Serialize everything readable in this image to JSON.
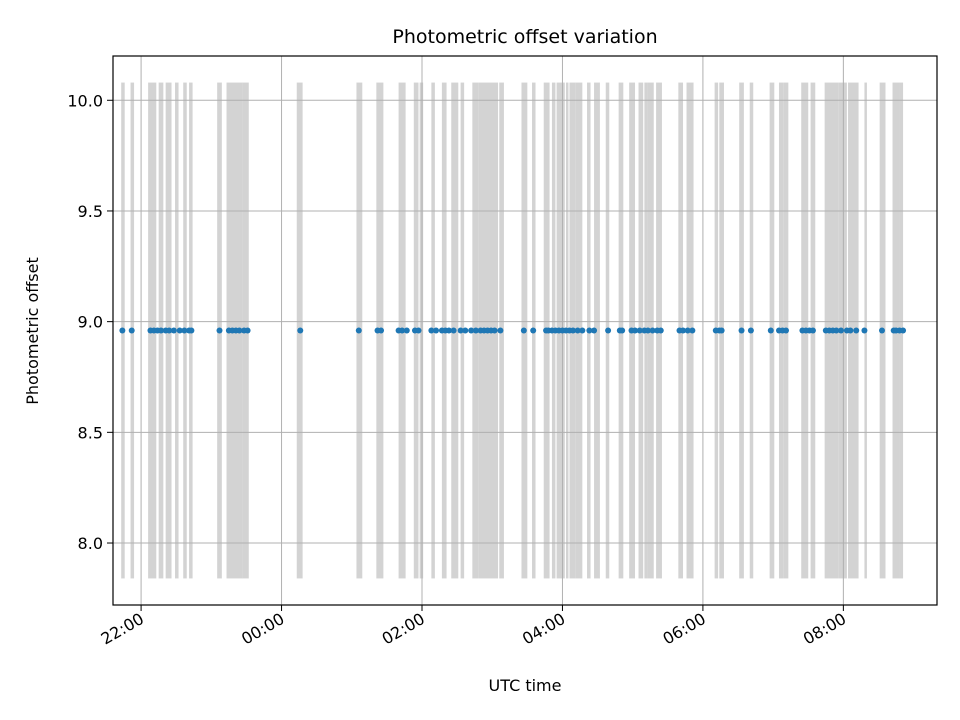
{
  "chart_data": {
    "type": "scatter",
    "title": "Photometric offset variation",
    "xlabel": "UTC time",
    "ylabel": "Photometric offset",
    "x_unit": "UTC",
    "xlim": [
      "21:36",
      "09:20"
    ],
    "ylim": [
      7.72,
      10.2
    ],
    "x_ticks": [
      "22:00",
      "00:00",
      "02:00",
      "04:00",
      "06:00",
      "08:00"
    ],
    "y_ticks": [
      8.0,
      8.5,
      9.0,
      9.5,
      10.0
    ],
    "grid": true,
    "band_y_range": [
      7.84,
      10.08
    ],
    "band_color": "#d3d3d3",
    "point_color": "#1f77b4",
    "bands": [
      [
        "21:43",
        "21:46"
      ],
      [
        "21:51",
        "21:54"
      ],
      [
        "22:06",
        "22:13"
      ],
      [
        "22:15",
        "22:19"
      ],
      [
        "22:21",
        "22:26"
      ],
      [
        "22:29",
        "22:32"
      ],
      [
        "22:36",
        "22:39"
      ],
      [
        "22:41",
        "22:44"
      ],
      [
        "23:05",
        "23:09"
      ],
      [
        "23:13",
        "23:27"
      ],
      [
        "23:27",
        "23:32"
      ],
      [
        "00:13",
        "00:18"
      ],
      [
        "01:04",
        "01:09"
      ],
      [
        "01:21",
        "01:27"
      ],
      [
        "01:40",
        "01:46"
      ],
      [
        "01:53",
        "01:57"
      ],
      [
        "01:58",
        "02:01"
      ],
      [
        "02:08",
        "02:11"
      ],
      [
        "02:17",
        "02:21"
      ],
      [
        "02:25",
        "02:31"
      ],
      [
        "02:33",
        "02:36"
      ],
      [
        "02:43",
        "02:48"
      ],
      [
        "02:48",
        "03:05"
      ],
      [
        "03:06",
        "03:10"
      ],
      [
        "03:25",
        "03:30"
      ],
      [
        "03:34",
        "03:37"
      ],
      [
        "03:44",
        "03:49"
      ],
      [
        "03:51",
        "03:54"
      ],
      [
        "03:55",
        "04:02"
      ],
      [
        "04:03",
        "04:05"
      ],
      [
        "04:06",
        "04:11"
      ],
      [
        "04:11",
        "04:17"
      ],
      [
        "04:21",
        "04:24"
      ],
      [
        "04:27",
        "04:32"
      ],
      [
        "04:37",
        "04:40"
      ],
      [
        "04:48",
        "04:52"
      ],
      [
        "04:57",
        "05:02"
      ],
      [
        "05:05",
        "05:09"
      ],
      [
        "05:10",
        "05:13"
      ],
      [
        "05:13",
        "05:18"
      ],
      [
        "05:20",
        "05:25"
      ],
      [
        "05:39",
        "05:43"
      ],
      [
        "05:46",
        "05:52"
      ],
      [
        "06:10",
        "06:13"
      ],
      [
        "06:14",
        "06:18"
      ],
      [
        "06:31",
        "06:35"
      ],
      [
        "06:40",
        "06:43"
      ],
      [
        "06:57",
        "07:01"
      ],
      [
        "07:05",
        "07:09"
      ],
      [
        "07:09",
        "07:13"
      ],
      [
        "07:24",
        "07:30"
      ],
      [
        "07:32",
        "07:36"
      ],
      [
        "07:44",
        "07:49"
      ],
      [
        "07:49",
        "07:56"
      ],
      [
        "07:56",
        "08:03"
      ],
      [
        "08:04",
        "08:13"
      ],
      [
        "08:18",
        "08:20"
      ],
      [
        "08:31",
        "08:36"
      ],
      [
        "08:42",
        "08:48"
      ],
      [
        "08:48",
        "08:51"
      ]
    ],
    "series": [
      {
        "x": [
          "21:44",
          "21:52",
          "22:08",
          "22:11",
          "22:14",
          "22:17",
          "22:21",
          "22:24",
          "22:28",
          "22:33",
          "22:37",
          "22:41",
          "22:43",
          "23:07",
          "23:15",
          "23:18",
          "23:21",
          "23:24",
          "23:28",
          "23:31",
          "00:16",
          "01:06",
          "01:22",
          "01:25",
          "01:40",
          "01:43",
          "01:47",
          "01:54",
          "01:57",
          "02:08",
          "02:12",
          "02:17",
          "02:20",
          "02:23",
          "02:27",
          "02:33",
          "02:37",
          "02:42",
          "02:46",
          "02:50",
          "02:53",
          "02:56",
          "02:59",
          "03:02",
          "03:07",
          "03:27",
          "03:35",
          "03:46",
          "03:48",
          "03:51",
          "03:54",
          "03:57",
          "04:00",
          "04:03",
          "04:06",
          "04:09",
          "04:13",
          "04:17",
          "04:23",
          "04:27",
          "04:39",
          "04:49",
          "04:51",
          "04:59",
          "05:02",
          "05:06",
          "05:10",
          "05:13",
          "05:17",
          "05:21",
          "05:24",
          "05:40",
          "05:43",
          "05:47",
          "05:51",
          "06:11",
          "06:14",
          "06:16",
          "06:33",
          "06:41",
          "06:58",
          "07:05",
          "07:08",
          "07:11",
          "07:25",
          "07:28",
          "07:31",
          "07:34",
          "07:45",
          "07:48",
          "07:51",
          "07:54",
          "07:58",
          "08:03",
          "08:06",
          "08:11",
          "08:18",
          "08:33",
          "08:43",
          "08:45",
          "08:48",
          "08:51"
        ],
        "y_value": 8.96
      }
    ]
  }
}
